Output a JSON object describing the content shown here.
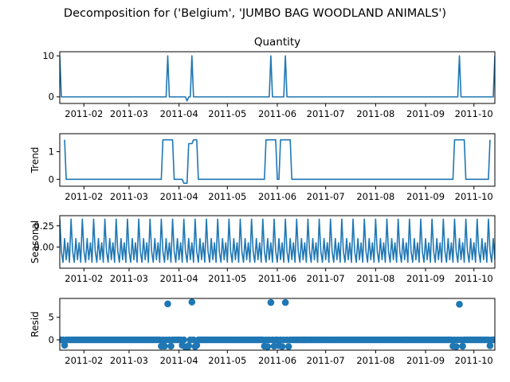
{
  "suptitle": "Decomposition for ('Belgium', 'JUMBO BAG WOODLAND ANIMALS')",
  "colors": {
    "series": "#1f77b4",
    "axis": "#000000",
    "background": "#ffffff"
  },
  "chart_data": [
    {
      "type": "line",
      "title": "Quantity",
      "ylabel": "",
      "xlim": [
        "2011-01-17",
        "2011-10-14"
      ],
      "ylim": [
        -1.6,
        11
      ],
      "yticks": [
        0,
        10
      ],
      "ytick_labels": [
        "0",
        "10"
      ],
      "xticks": [
        "2011-02-01",
        "2011-03-01",
        "2011-04-01",
        "2011-05-01",
        "2011-06-01",
        "2011-07-01",
        "2011-08-01",
        "2011-09-01",
        "2011-10-01"
      ],
      "xtick_labels": [
        "2011-02",
        "2011-03",
        "2011-04",
        "2011-05",
        "2011-06",
        "2011-07",
        "2011-08",
        "2011-09",
        "2011-10"
      ],
      "series": [
        {
          "points": [
            [
              "2011-01-17",
              10
            ],
            [
              "2011-01-18",
              0
            ],
            [
              "2011-03-24",
              0
            ],
            [
              "2011-03-25",
              10
            ],
            [
              "2011-03-26",
              0
            ],
            [
              "2011-04-05",
              0
            ],
            [
              "2011-04-06",
              -1
            ],
            [
              "2011-04-07",
              0
            ],
            [
              "2011-04-08",
              0
            ],
            [
              "2011-04-09",
              10
            ],
            [
              "2011-04-10",
              0
            ],
            [
              "2011-05-27",
              0
            ],
            [
              "2011-05-28",
              10
            ],
            [
              "2011-05-29",
              0
            ],
            [
              "2011-06-05",
              0
            ],
            [
              "2011-06-06",
              10
            ],
            [
              "2011-06-07",
              0
            ],
            [
              "2011-09-21",
              0
            ],
            [
              "2011-09-22",
              10
            ],
            [
              "2011-09-23",
              0
            ],
            [
              "2011-10-13",
              0
            ],
            [
              "2011-10-14",
              10
            ]
          ]
        }
      ]
    },
    {
      "type": "line",
      "title": "",
      "ylabel": "Trend",
      "xlim": [
        "2011-01-17",
        "2011-10-14"
      ],
      "ylim": [
        -0.25,
        1.65
      ],
      "yticks": [
        0,
        1
      ],
      "ytick_labels": [
        "0",
        "1"
      ],
      "xticks": [
        "2011-02-01",
        "2011-03-01",
        "2011-04-01",
        "2011-05-01",
        "2011-06-01",
        "2011-07-01",
        "2011-08-01",
        "2011-09-01",
        "2011-10-01"
      ],
      "xtick_labels": [
        "2011-02",
        "2011-03",
        "2011-04",
        "2011-05",
        "2011-06",
        "2011-07",
        "2011-08",
        "2011-09",
        "2011-10"
      ],
      "series": [
        {
          "points": [
            [
              "2011-01-20",
              1.43
            ],
            [
              "2011-01-21",
              0
            ],
            [
              "2011-03-21",
              0
            ],
            [
              "2011-03-22",
              1.43
            ],
            [
              "2011-03-28",
              1.43
            ],
            [
              "2011-03-29",
              0
            ],
            [
              "2011-04-03",
              0
            ],
            [
              "2011-04-04",
              -0.14
            ],
            [
              "2011-04-06",
              -0.14
            ],
            [
              "2011-04-07",
              1.29
            ],
            [
              "2011-04-09",
              1.29
            ],
            [
              "2011-04-10",
              1.43
            ],
            [
              "2011-04-12",
              1.43
            ],
            [
              "2011-04-13",
              0
            ],
            [
              "2011-05-24",
              0
            ],
            [
              "2011-05-25",
              1.43
            ],
            [
              "2011-05-31",
              1.43
            ],
            [
              "2011-06-01",
              0
            ],
            [
              "2011-06-02",
              0
            ],
            [
              "2011-06-03",
              1.43
            ],
            [
              "2011-06-09",
              1.43
            ],
            [
              "2011-06-10",
              0
            ],
            [
              "2011-09-18",
              0
            ],
            [
              "2011-09-19",
              1.43
            ],
            [
              "2011-09-25",
              1.43
            ],
            [
              "2011-09-26",
              0
            ],
            [
              "2011-10-10",
              0
            ],
            [
              "2011-10-11",
              1.43
            ]
          ]
        }
      ]
    },
    {
      "type": "line",
      "title": "",
      "ylabel": "Seasonal",
      "xlim": [
        "2011-01-17",
        "2011-10-14"
      ],
      "ylim": [
        -0.25,
        0.37
      ],
      "yticks": [
        0,
        0.25
      ],
      "ytick_labels": [
        "0.00",
        "0.25"
      ],
      "xticks": [
        "2011-02-01",
        "2011-03-01",
        "2011-04-01",
        "2011-05-01",
        "2011-06-01",
        "2011-07-01",
        "2011-08-01",
        "2011-09-01",
        "2011-10-01"
      ],
      "xtick_labels": [
        "2011-02",
        "2011-03",
        "2011-04",
        "2011-05",
        "2011-06",
        "2011-07",
        "2011-08",
        "2011-09",
        "2011-10"
      ],
      "start": "2011-01-17",
      "period_days": 7,
      "weekly_pattern": [
        0.33,
        -0.05,
        -0.18,
        0.1,
        -0.15,
        0.05,
        -0.18
      ]
    },
    {
      "type": "scatter",
      "title": "",
      "ylabel": "Resid",
      "xlim": [
        "2011-01-17",
        "2011-10-14"
      ],
      "ylim": [
        -2.3,
        9.2
      ],
      "yticks": [
        0,
        5
      ],
      "ytick_labels": [
        "0",
        "5"
      ],
      "xticks": [
        "2011-02-01",
        "2011-03-01",
        "2011-04-01",
        "2011-05-01",
        "2011-06-01",
        "2011-07-01",
        "2011-08-01",
        "2011-09-01",
        "2011-10-01"
      ],
      "xtick_labels": [
        "2011-02",
        "2011-03",
        "2011-04",
        "2011-05",
        "2011-06",
        "2011-07",
        "2011-08",
        "2011-09",
        "2011-10"
      ],
      "zero_line": true,
      "outliers": [
        [
          "2011-01-20",
          -1.2
        ],
        [
          "2011-03-21",
          -1.4
        ],
        [
          "2011-03-23",
          -1.4
        ],
        [
          "2011-03-25",
          8.0
        ],
        [
          "2011-03-27",
          -1.4
        ],
        [
          "2011-04-03",
          -1.2
        ],
        [
          "2011-04-05",
          -1.6
        ],
        [
          "2011-04-06",
          -2.2
        ],
        [
          "2011-04-07",
          -1.3
        ],
        [
          "2011-04-09",
          8.4
        ],
        [
          "2011-04-11",
          -1.5
        ],
        [
          "2011-04-12",
          -1.2
        ],
        [
          "2011-05-24",
          -1.4
        ],
        [
          "2011-05-26",
          -1.5
        ],
        [
          "2011-05-28",
          8.3
        ],
        [
          "2011-05-30",
          -1.4
        ],
        [
          "2011-06-02",
          -1.3
        ],
        [
          "2011-06-04",
          -1.5
        ],
        [
          "2011-06-06",
          8.3
        ],
        [
          "2011-06-08",
          -1.5
        ],
        [
          "2011-09-18",
          -1.4
        ],
        [
          "2011-09-20",
          -1.5
        ],
        [
          "2011-09-22",
          7.9
        ],
        [
          "2011-09-24",
          -1.4
        ],
        [
          "2011-10-11",
          -1.3
        ]
      ]
    }
  ]
}
